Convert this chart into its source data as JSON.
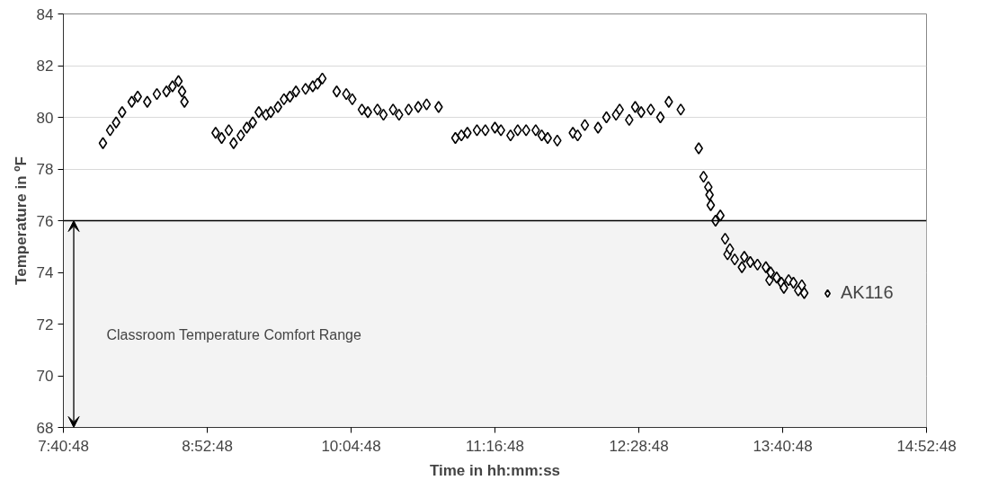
{
  "chart_data": {
    "type": "scatter",
    "xlabel": "Time in hh:mm:ss",
    "ylabel": "Temperature in ºF",
    "xlim": [
      7.68,
      14.88
    ],
    "ylim": [
      68,
      84
    ],
    "xticks": [
      {
        "value": 7.68,
        "label": "7:40:48"
      },
      {
        "value": 8.88,
        "label": "8:52:48"
      },
      {
        "value": 10.08,
        "label": "10:04:48"
      },
      {
        "value": 11.28,
        "label": "11:16:48"
      },
      {
        "value": 12.48,
        "label": "12:28:48"
      },
      {
        "value": 13.68,
        "label": "13:40:48"
      },
      {
        "value": 14.88,
        "label": "14:52:48"
      }
    ],
    "yticks": [
      68,
      70,
      72,
      74,
      76,
      78,
      80,
      82,
      84
    ],
    "grid": "y",
    "legend": "right",
    "marker": "diamond",
    "ref_lines": [
      {
        "axis": "y",
        "value": 76,
        "color": "#000000"
      }
    ],
    "bands": [
      {
        "axis": "y",
        "from": 68,
        "to": 76,
        "color": "#f3f3f3",
        "label": "Classroom Temperature Comfort Range"
      }
    ],
    "series": [
      {
        "name": "AK116",
        "color": "#000000",
        "x": [
          8.01,
          8.07,
          8.12,
          8.17,
          8.25,
          8.3,
          8.38,
          8.46,
          8.54,
          8.59,
          8.64,
          8.67,
          8.69,
          8.95,
          9.0,
          9.06,
          9.1,
          9.16,
          9.21,
          9.26,
          9.31,
          9.37,
          9.41,
          9.47,
          9.52,
          9.57,
          9.62,
          9.7,
          9.76,
          9.8,
          9.84,
          9.96,
          10.04,
          10.09,
          10.17,
          10.22,
          10.3,
          10.35,
          10.43,
          10.48,
          10.56,
          10.64,
          10.71,
          10.81,
          10.95,
          11.0,
          11.05,
          11.13,
          11.2,
          11.28,
          11.33,
          11.41,
          11.47,
          11.54,
          11.62,
          11.67,
          11.72,
          11.8,
          11.93,
          11.97,
          12.03,
          12.14,
          12.21,
          12.29,
          12.32,
          12.4,
          12.45,
          12.5,
          12.58,
          12.66,
          12.73,
          12.83,
          12.98,
          13.02,
          13.06,
          13.07,
          13.08,
          13.12,
          13.16,
          13.2,
          13.22,
          13.24,
          13.28,
          13.34,
          13.36,
          13.41,
          13.47,
          13.54,
          13.57,
          13.58,
          13.63,
          13.67,
          13.69,
          13.73,
          13.77,
          13.81,
          13.84,
          13.86
        ],
        "values": [
          79.0,
          79.5,
          79.8,
          80.2,
          80.6,
          80.8,
          80.6,
          80.9,
          81.0,
          81.2,
          81.4,
          81.0,
          80.6,
          79.4,
          79.2,
          79.5,
          79.0,
          79.3,
          79.6,
          79.8,
          80.2,
          80.1,
          80.2,
          80.4,
          80.7,
          80.8,
          81.0,
          81.1,
          81.2,
          81.3,
          81.5,
          81.0,
          80.9,
          80.7,
          80.3,
          80.2,
          80.3,
          80.1,
          80.3,
          80.1,
          80.3,
          80.4,
          80.5,
          80.4,
          79.2,
          79.3,
          79.4,
          79.5,
          79.5,
          79.6,
          79.5,
          79.3,
          79.5,
          79.5,
          79.5,
          79.3,
          79.2,
          79.1,
          79.4,
          79.3,
          79.7,
          79.6,
          80.0,
          80.1,
          80.3,
          79.9,
          80.4,
          80.2,
          80.3,
          80.0,
          80.6,
          80.3,
          78.8,
          77.7,
          77.3,
          77.0,
          76.6,
          76.0,
          76.2,
          75.3,
          74.7,
          74.9,
          74.5,
          74.2,
          74.6,
          74.4,
          74.3,
          74.2,
          73.7,
          74.0,
          73.8,
          73.6,
          73.4,
          73.7,
          73.6,
          73.3,
          73.5,
          73.2
        ]
      }
    ]
  }
}
